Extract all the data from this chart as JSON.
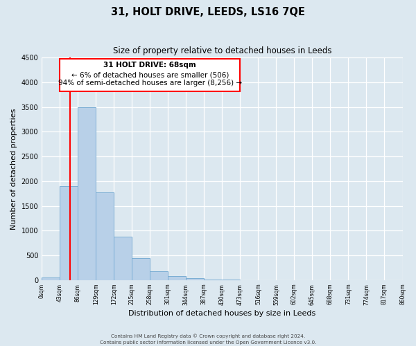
{
  "title": "31, HOLT DRIVE, LEEDS, LS16 7QE",
  "subtitle": "Size of property relative to detached houses in Leeds",
  "xlabel": "Distribution of detached houses by size in Leeds",
  "ylabel": "Number of detached properties",
  "bar_color": "#b8d0e8",
  "bar_edge_color": "#7aadd4",
  "annotation_line_color": "red",
  "annotation_box_edge_color": "red",
  "annotation_text_line1": "31 HOLT DRIVE: 68sqm",
  "annotation_text_line2": "← 6% of detached houses are smaller (506)",
  "annotation_text_line3": "94% of semi-detached houses are larger (8,256) →",
  "property_size_sqm": 68,
  "ylim": [
    0,
    4500
  ],
  "yticks": [
    0,
    500,
    1000,
    1500,
    2000,
    2500,
    3000,
    3500,
    4000,
    4500
  ],
  "bin_edges": [
    0,
    43,
    86,
    129,
    172,
    215,
    258,
    301,
    344,
    387,
    430,
    473,
    516,
    559,
    602,
    645,
    688,
    731,
    774,
    817,
    860
  ],
  "bin_counts": [
    50,
    1900,
    3500,
    1775,
    875,
    450,
    185,
    80,
    40,
    15,
    5,
    2,
    0,
    0,
    0,
    0,
    0,
    0,
    0,
    0
  ],
  "footer_line1": "Contains HM Land Registry data © Crown copyright and database right 2024.",
  "footer_line2": "Contains public sector information licensed under the Open Government Licence v3.0.",
  "background_color": "#dce8f0"
}
